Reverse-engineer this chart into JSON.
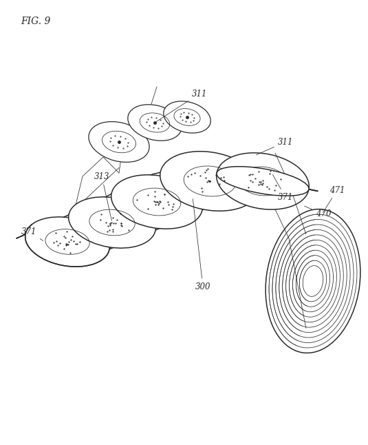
{
  "title": "FIG. 9",
  "bg_color": "#ffffff",
  "line_color": "#2a2a2a",
  "lw": 0.9,
  "lw_thin": 0.55,
  "lw_thick": 1.1,
  "figsize": [
    5.35,
    6.46
  ],
  "dpi": 100
}
